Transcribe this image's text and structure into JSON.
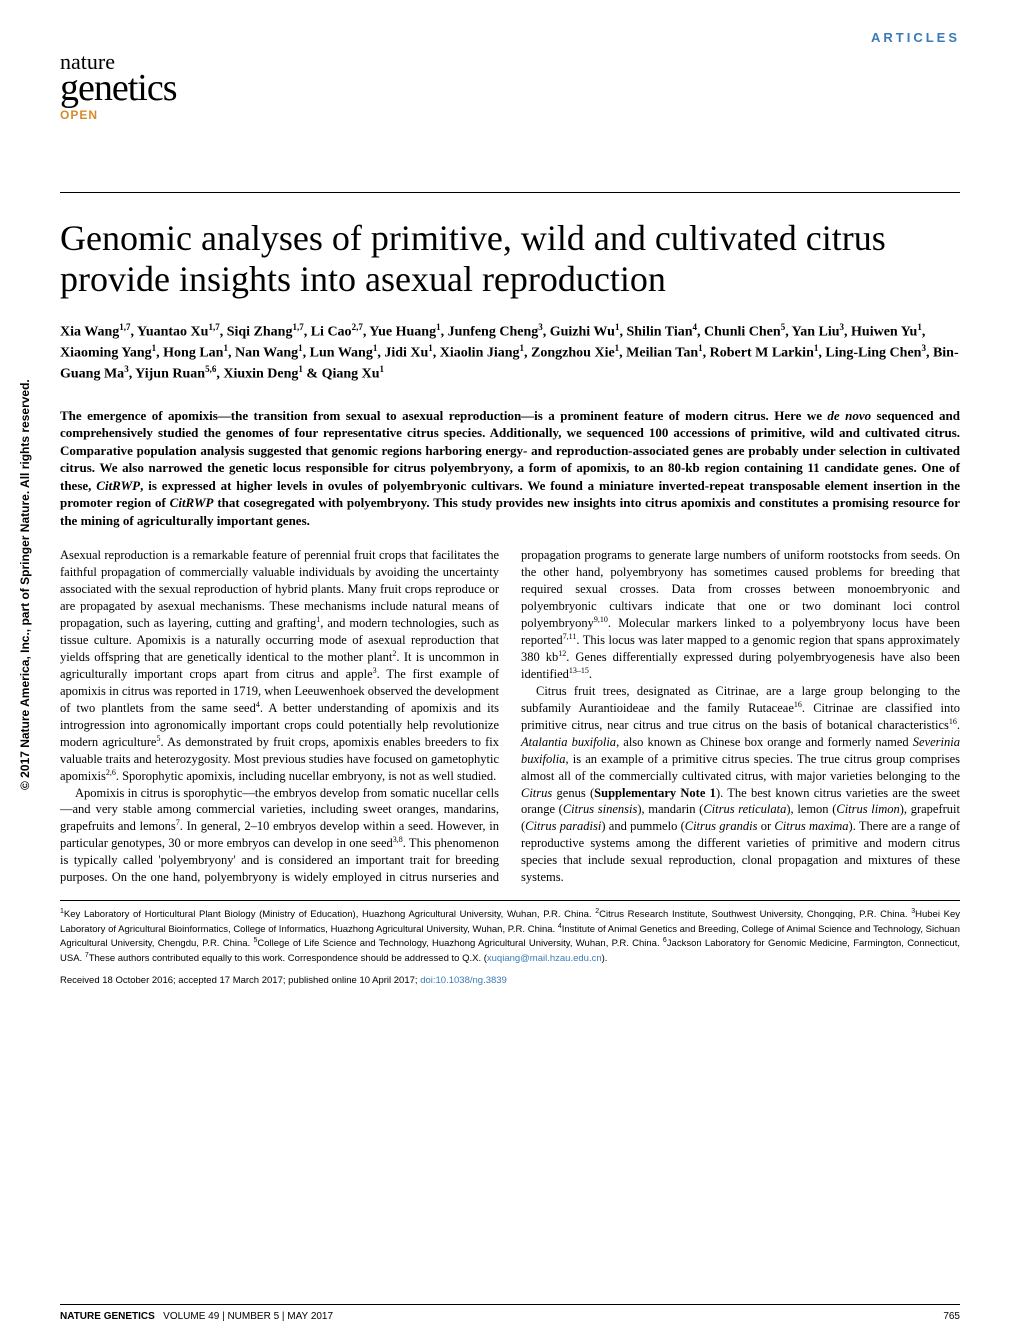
{
  "section_label": "ARTICLES",
  "vertical_copyright": "© 2017 Nature America, Inc., part of Springer Nature. All rights reserved.",
  "brand": {
    "line1": "nature",
    "line2": "genetics",
    "open": "OPEN"
  },
  "title": "Genomic analyses of primitive, wild and cultivated citrus provide insights into asexual reproduction",
  "authors_html": "Xia Wang<sup>1,7</sup>, Yuantao Xu<sup>1,7</sup>, Siqi Zhang<sup>1,7</sup>, Li Cao<sup>2,7</sup>, Yue Huang<sup>1</sup>, Junfeng Cheng<sup>3</sup>, Guizhi Wu<sup>1</sup>, Shilin Tian<sup>4</sup>, Chunli Chen<sup>5</sup>, Yan Liu<sup>3</sup>, Huiwen Yu<sup>1</sup>, Xiaoming Yang<sup>1</sup>, Hong Lan<sup>1</sup>, Nan Wang<sup>1</sup>, Lun Wang<sup>1</sup>, Jidi Xu<sup>1</sup>, Xiaolin Jiang<sup>1</sup>, Zongzhou Xie<sup>1</sup>, Meilian Tan<sup>1</sup>, Robert M Larkin<sup>1</sup>, Ling-Ling Chen<sup>3</sup>, Bin-Guang Ma<sup>3</sup>, Yijun Ruan<sup>5,6</sup>, Xiuxin Deng<sup>1</sup> & Qiang Xu<sup>1</sup>",
  "abstract_html": "The emergence of apomixis—the transition from sexual to asexual reproduction—is a prominent feature of modern citrus. Here we <em>de novo</em> sequenced and comprehensively studied the genomes of four representative citrus species. Additionally, we sequenced 100 accessions of primitive, wild and cultivated citrus. Comparative population analysis suggested that genomic regions harboring energy- and reproduction-associated genes are probably under selection in cultivated citrus. We also narrowed the genetic locus responsible for citrus polyembryony, a form of apomixis, to an 80-kb region containing 11 candidate genes. One of these, <em>CitRWP</em>, is expressed at higher levels in ovules of polyembryonic cultivars. We found a miniature inverted-repeat transposable element insertion in the promoter region of <em>CitRWP</em> that cosegregated with polyembryony. This study provides new insights into citrus apomixis and constitutes a promising resource for the mining of agriculturally important genes.",
  "body_para1_html": "Asexual reproduction is a remarkable feature of perennial fruit crops that facilitates the faithful propagation of commercially valuable individuals by avoiding the uncertainty associated with the sexual reproduction of hybrid plants. Many fruit crops reproduce or are propagated by asexual mechanisms. These mechanisms include natural means of propagation, such as layering, cutting and grafting<sup>1</sup>, and modern technologies, such as tissue culture. Apomixis is a naturally occurring mode of asexual reproduction that yields offspring that are genetically identical to the mother plant<sup>2</sup>. It is uncommon in agriculturally important crops apart from citrus and apple<sup>3</sup>. The first example of apomixis in citrus was reported in 1719, when Leeuwenhoek observed the development of two plantlets from the same seed<sup>4</sup>. A better understanding of apomixis and its introgression into agronomically important crops could potentially help revolutionize modern agriculture<sup>5</sup>. As demonstrated by fruit crops, apomixis enables breeders to fix valuable traits and heterozygosity. Most previous studies have focused on gametophytic apomixis<sup>2,6</sup>. Sporophytic apomixis, including nucellar embryony, is not as well studied.",
  "body_para2_html": "Apomixis in citrus is sporophytic—the embryos develop from somatic nucellar cells—and very stable among commercial varieties, including sweet oranges, mandarins, grapefruits and lemons<sup>7</sup>. In general, 2–10 embryos develop within a seed. However, in particular genotypes, 30 or more embryos can develop in one seed<sup>3,8</sup>. This phenomenon is typically called 'polyembryony' and is considered an important trait for breeding purposes. On the one hand, polyembryony is widely employed in citrus nurseries and propagation programs to generate large numbers of uniform rootstocks from seeds. On the other hand, polyembryony has sometimes caused problems for breeding that required sexual crosses. Data from crosses between monoembryonic and polyembryonic cultivars indicate that one or two dominant loci control polyembryony<sup>9,10</sup>. Molecular markers linked to a polyembryony locus have been reported<sup>7,11</sup>. This locus was later mapped to a genomic region that spans approximately 380 kb<sup>12</sup>. Genes differentially expressed during polyembryogenesis have also been identified<sup>13–15</sup>.",
  "body_para3_html": "Citrus fruit trees, designated as Citrinae, are a large group belonging to the subfamily Aurantioideae and the family Rutaceae<sup>16</sup>. Citrinae are classified into primitive citrus, near citrus and true citrus on the basis of botanical characteristics<sup>16</sup>. <em>Atalantia buxifolia</em>, also known as Chinese box orange and formerly named <em>Severinia buxifolia</em>, is an example of a primitive citrus species. The true citrus group comprises almost all of the commercially cultivated citrus, with major varieties belonging to the <em>Citrus</em> genus (<b>Supplementary Note 1</b>). The best known citrus varieties are the sweet orange (<em>Citrus sinensis</em>), mandarin (<em>Citrus reticulata</em>), lemon (<em>Citrus limon</em>), grapefruit (<em>Citrus paradisi</em>) and pummelo (<em>Citrus grandis</em> or <em>Citrus maxima</em>). There are a range of reproductive systems among the different varieties of primitive and modern citrus species that include sexual reproduction, clonal propagation and mixtures of these systems.",
  "affiliations_html": "<sup>1</sup>Key Laboratory of Horticultural Plant Biology (Ministry of Education), Huazhong Agricultural University, Wuhan, P.R. China. <sup>2</sup>Citrus Research Institute, Southwest University, Chongqing, P.R. China. <sup>3</sup>Hubei Key Laboratory of Agricultural Bioinformatics, College of Informatics, Huazhong Agricultural University, Wuhan, P.R. China. <sup>4</sup>Institute of Animal Genetics and Breeding, College of Animal Science and Technology, Sichuan Agricultural University, Chengdu, P.R. China. <sup>5</sup>College of Life Science and Technology, Huazhong Agricultural University, Wuhan, P.R. China. <sup>6</sup>Jackson Laboratory for Genomic Medicine, Farmington, Connecticut, USA. <sup>7</sup>These authors contributed equally to this work. Correspondence should be addressed to Q.X. (<a>xuqiang@mail.hzau.edu.cn</a>).",
  "dates_text": "Received 18 October 2016; accepted 17 March 2017; published online 10 April 2017; ",
  "doi_text": "doi:10.1038/ng.3839",
  "footer": {
    "journal": "NATURE GENETICS",
    "volume": "VOLUME 49 | NUMBER 5 | MAY 2017",
    "page": "765"
  },
  "colors": {
    "section_label": "#3b7bb5",
    "open_label": "#d98b2b",
    "link": "#3b7bb5"
  }
}
